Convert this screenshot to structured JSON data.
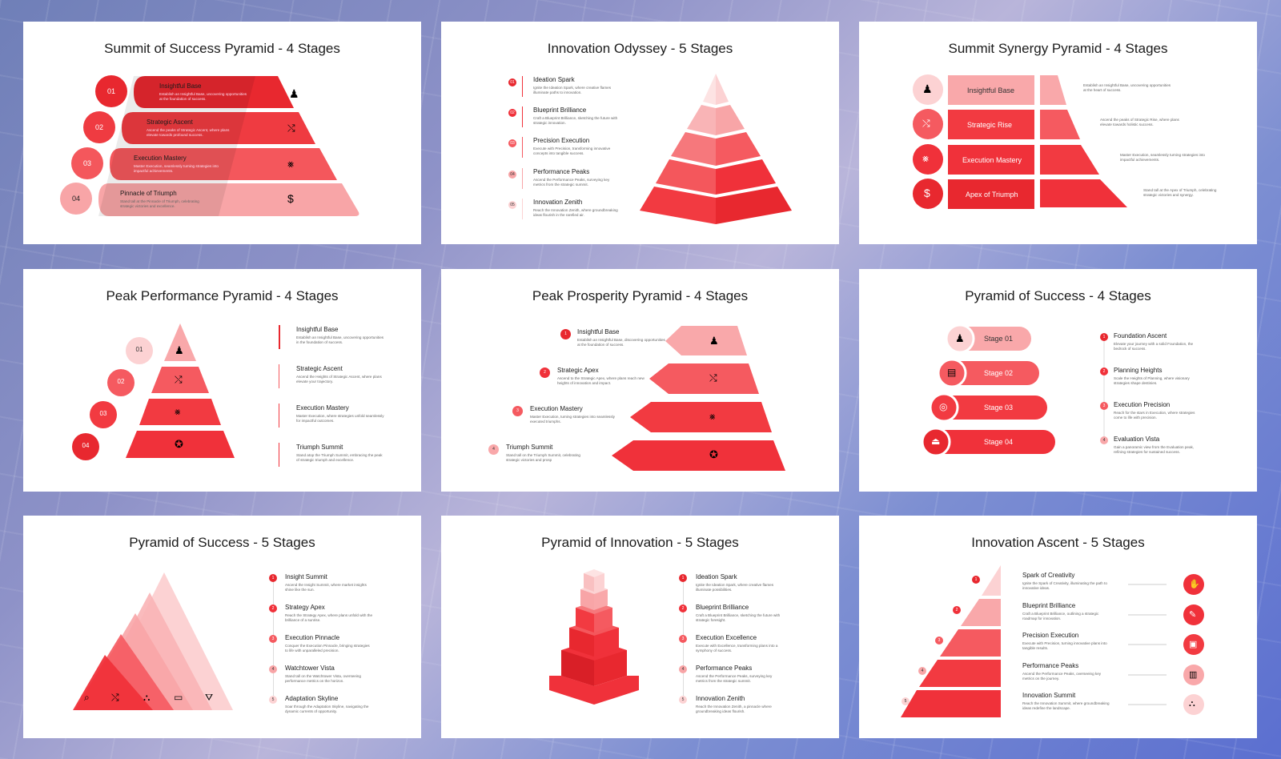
{
  "colors": {
    "red": "#f0313a",
    "mid": "#f55a60",
    "light": "#f9a8aa",
    "pale": "#fcd2d3",
    "text": "#1b1b1b"
  },
  "slides": [
    {
      "title": "Summit of Success Pyramid - 4 Stages",
      "stages": [
        {
          "num": "01",
          "title": "Insightful Base",
          "desc": "Establish an Insightful Base, uncovering opportunities at the foundation of success.",
          "icon": "chess-pawn-icon"
        },
        {
          "num": "02",
          "title": "Strategic Ascent",
          "desc": "Ascend the peaks of Strategic Ascent, where plans elevate towards profound success.",
          "icon": "route-icon"
        },
        {
          "num": "03",
          "title": "Execution Mastery",
          "desc": "Master Execution, seamlessly turning strategies into impactful achievements.",
          "icon": "network-icon"
        },
        {
          "num": "04",
          "title": "Pinnacle of Triumph",
          "desc": "Stand tall at the Pinnacle of Triumph, celebrating strategic victories and excellence.",
          "icon": "dollar-badge-icon"
        }
      ]
    },
    {
      "title": "Innovation Odyssey - 5 Stages",
      "stages": [
        {
          "num": "01",
          "title": "Ideation Spark",
          "desc": "Ignite the Ideation Spark, where creative flames illuminate paths to innovation."
        },
        {
          "num": "02",
          "title": "Blueprint Brilliance",
          "desc": "Craft a Blueprint Brilliance, sketching the future with strategic innovation."
        },
        {
          "num": "03",
          "title": "Precision Execution",
          "desc": "Execute with Precision, transforming innovative concepts into tangible success."
        },
        {
          "num": "04",
          "title": "Performance Peaks",
          "desc": "Ascend the Performance Peaks, surveying key metrics from the strategic summit."
        },
        {
          "num": "05",
          "title": "Innovation Zenith",
          "desc": "Reach the Innovation Zenith, where groundbreaking ideas flourish in the rarefied air."
        }
      ]
    },
    {
      "title": "Summit Synergy Pyramid - 4 Stages",
      "stages": [
        {
          "title": "Insightful Base",
          "desc": "Establish an Insightful Base, uncovering opportunities at the heart of success.",
          "icon": "chess-pawn-icon"
        },
        {
          "title": "Strategic Rise",
          "desc": "Ascend the peaks of Strategic Rise, where plans elevate towards holistic success.",
          "icon": "route-icon"
        },
        {
          "title": "Execution Mastery",
          "desc": "Master Execution, seamlessly turning strategies into impactful achievements.",
          "icon": "network-icon"
        },
        {
          "title": "Apex of Triumph",
          "desc": "Stand tall at the Apex of Triumph, celebrating strategic victories and synergy.",
          "icon": "dollar-badge-icon"
        }
      ]
    },
    {
      "title": "Peak Performance Pyramid - 4 Stages",
      "stages": [
        {
          "num": "01",
          "title": "Insightful Base",
          "desc": "Establish an Insightful Base, uncovering opportunities in the foundation of success."
        },
        {
          "num": "02",
          "title": "Strategic Ascent",
          "desc": "Ascend the Heights of Strategic Ascent, where plans elevate your trajectory."
        },
        {
          "num": "03",
          "title": "Execution Mastery",
          "desc": "Master Execution, where strategies unfold seamlessly for impactful outcomes."
        },
        {
          "num": "04",
          "title": "Triumph Summit",
          "desc": "Stand atop the Triumph Summit, embracing the peak of strategic triumph and excellence."
        }
      ]
    },
    {
      "title": "Peak Prosperity Pyramid - 4 Stages",
      "stages": [
        {
          "num": "1",
          "title": "Insightful Base",
          "desc": "Establish an Insightful Base, discovering opportunities at the foundation of success."
        },
        {
          "num": "2",
          "title": "Strategic Apex",
          "desc": "Ascend to the Strategic Apex, where plans reach new heights of innovation and impact."
        },
        {
          "num": "3",
          "title": "Execution Mastery",
          "desc": "Master Execution, turning strategies into seamlessly executed triumphs."
        },
        {
          "num": "4",
          "title": "Triumph Summit",
          "desc": "Stand tall on the Triumph Summit, celebrating strategic victories and prosp"
        }
      ]
    },
    {
      "title": "Pyramid of Success - 4 Stages",
      "pills": [
        "Stage 01",
        "Stage 02",
        "Stage 03",
        "Stage 04"
      ],
      "stages": [
        {
          "num": "1",
          "title": "Foundation Ascent",
          "desc": "Elevate your journey with a solid Foundation, the bedrock of success."
        },
        {
          "num": "2",
          "title": "Planning Heights",
          "desc": "Scale the Heights of Planning, where visionary strategies shape destinies."
        },
        {
          "num": "3",
          "title": "Execution Precision",
          "desc": "Reach for the stars in Execution, where strategies come to life with precision."
        },
        {
          "num": "4",
          "title": "Evaluation Vista",
          "desc": "Gain a panoramic view from the Evaluation peak, refining strategies for sustained success."
        }
      ]
    },
    {
      "title": "Pyramid of Success - 5 Stages",
      "stages": [
        {
          "num": "1",
          "title": "Insight Summit",
          "desc": "Ascend the Insight Summit, where market insights shine like the sun."
        },
        {
          "num": "2",
          "title": "Strategy Apex",
          "desc": "Reach the Strategy Apex, where plans unfold with the brilliance of a sunrise."
        },
        {
          "num": "3",
          "title": "Execution Pinnacle",
          "desc": "Conquer the Execution Pinnacle, bringing strategies to life with unparalleled precision."
        },
        {
          "num": "4",
          "title": "Watchtower Vista",
          "desc": "Stand tall on the Watchtower Vista, overseeing performance metrics on the horizon."
        },
        {
          "num": "5",
          "title": "Adaptation Skyline",
          "desc": "Soar through the Adaptation Skyline, navigating the dynamic currents of opportunity."
        }
      ]
    },
    {
      "title": "Pyramid of Innovation - 5 Stages",
      "stages": [
        {
          "num": "1",
          "title": "Ideation Spark",
          "desc": "Ignite the Ideation Spark, where creative flames illuminate possibilities."
        },
        {
          "num": "2",
          "title": "Blueprint Brilliance",
          "desc": "Craft a Blueprint Brilliance, sketching the future with strategic foresight."
        },
        {
          "num": "3",
          "title": "Execution Excellence",
          "desc": "Execute with Excellence, transforming plans into a symphony of success."
        },
        {
          "num": "4",
          "title": "Performance Peaks",
          "desc": "Ascend the Performance Peaks, surveying key metrics from the strategic summit."
        },
        {
          "num": "5",
          "title": "Innovation Zenith",
          "desc": "Reach the Innovation Zenith, a pinnacle where groundbreaking ideas flourish."
        }
      ]
    },
    {
      "title": "Innovation Ascent - 5 Stages",
      "stages": [
        {
          "num": "1",
          "title": "Spark of Creativity",
          "desc": "Ignite the Spark of Creativity, illuminating the path to innovative ideas."
        },
        {
          "num": "2",
          "title": "Blueprint Brilliance",
          "desc": "Craft a Blueprint Brilliance, outlining a strategic roadmap for innovation."
        },
        {
          "num": "3",
          "title": "Precision Execution",
          "desc": "Execute with Precision, turning innovative plans into tangible results."
        },
        {
          "num": "4",
          "title": "Performance Peaks",
          "desc": "Ascend the Performance Peaks, overseeing key metrics on the journey."
        },
        {
          "num": "5",
          "title": "Innovation Summit",
          "desc": "Reach the Innovation Summit, where groundbreaking ideas redefine the landscape."
        }
      ]
    }
  ]
}
